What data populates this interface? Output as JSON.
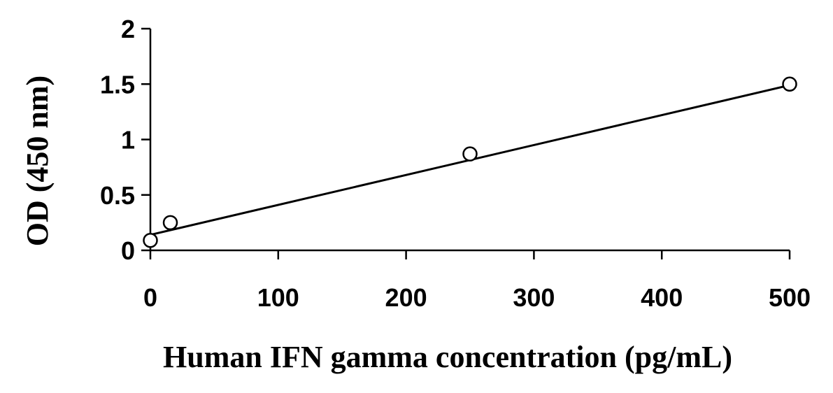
{
  "chart_data": {
    "type": "scatter",
    "title": "",
    "xlabel": "Human IFN gamma concentration (pg/mL)",
    "ylabel": "OD (450 nm)",
    "xlim": [
      0,
      500
    ],
    "ylim": [
      0,
      2
    ],
    "x_ticks": [
      0,
      100,
      200,
      300,
      400,
      500
    ],
    "y_ticks": [
      0,
      0.5,
      1,
      1.5,
      2
    ],
    "x_tick_labels": [
      "0",
      "100",
      "200",
      "300",
      "400",
      "500"
    ],
    "y_tick_labels": [
      "0",
      "0.5",
      "1",
      "1.5",
      "2"
    ],
    "grid": false,
    "series": [
      {
        "marker": "open-circle",
        "x": [
          0,
          15.6,
          250,
          500
        ],
        "y": [
          0.09,
          0.25,
          0.87,
          1.5
        ]
      }
    ],
    "trendline": {
      "type": "linear",
      "x": [
        0,
        500
      ],
      "y": [
        0.14,
        1.49
      ]
    }
  },
  "colors": {
    "axis": "#000000",
    "marker_fill": "#ffffff",
    "line": "#000000"
  }
}
